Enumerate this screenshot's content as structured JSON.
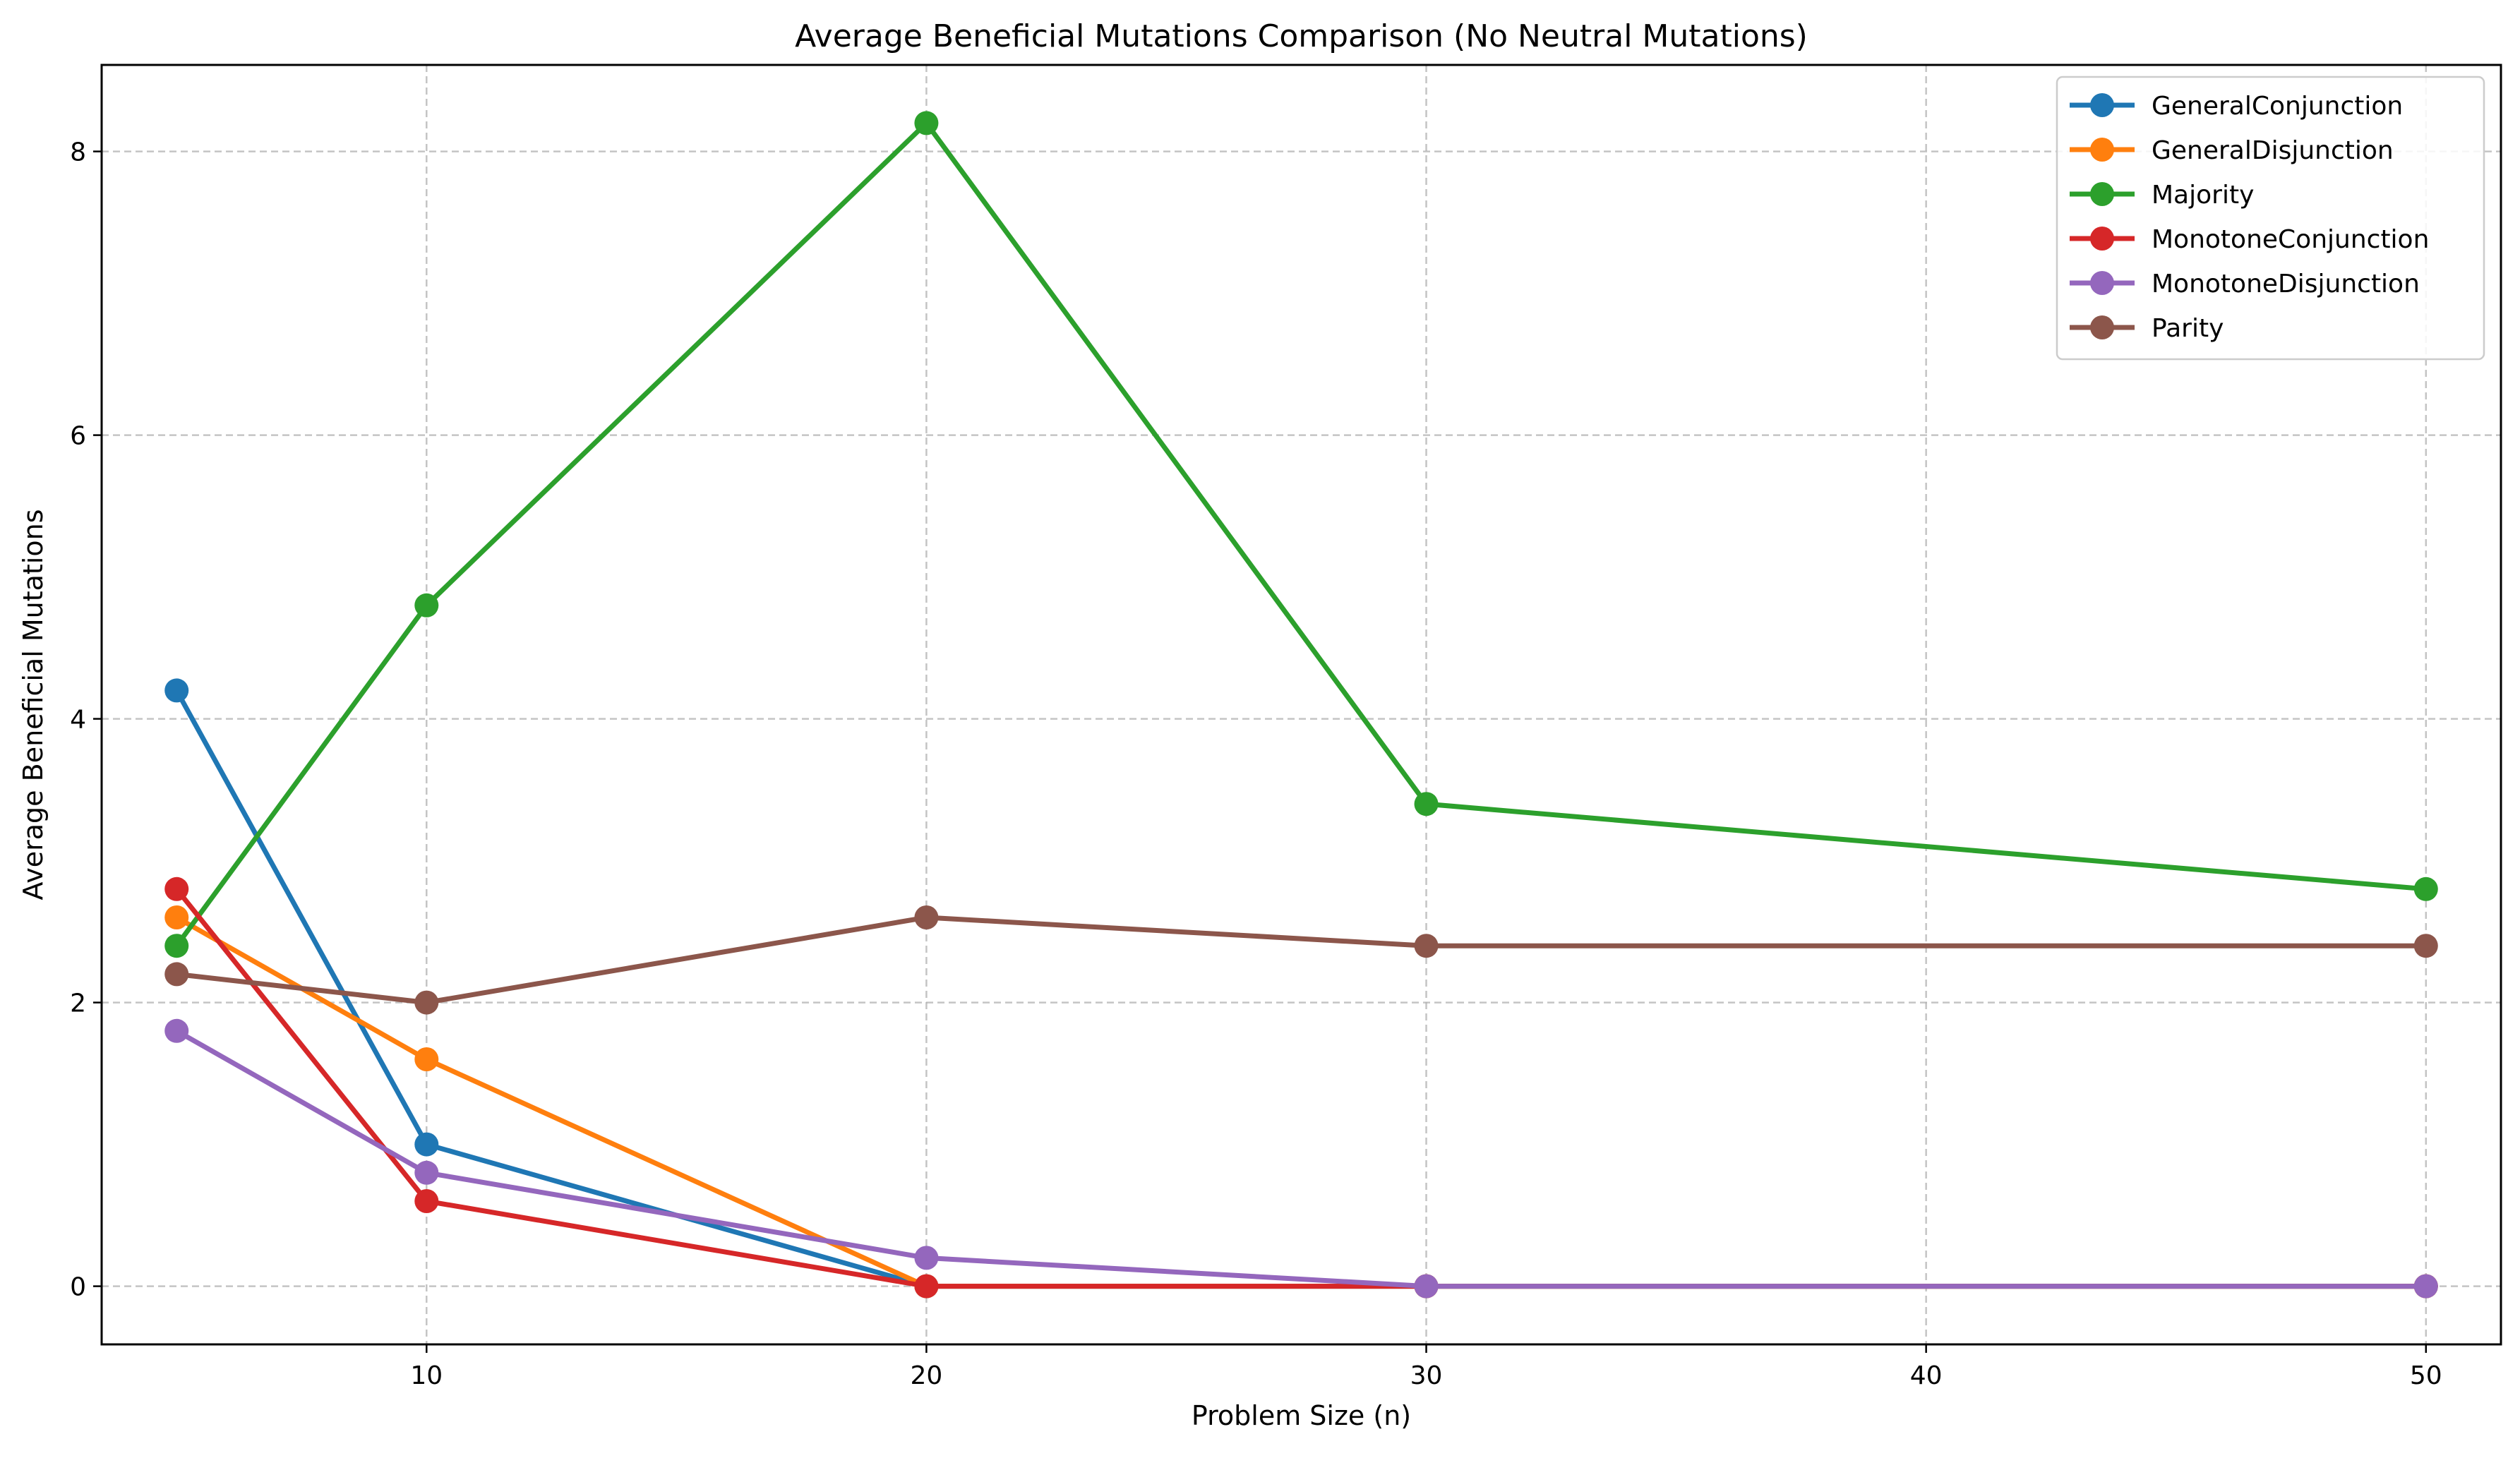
{
  "chart_data": {
    "type": "line",
    "title": "Average Beneficial Mutations Comparison (No Neutral Mutations)",
    "xlabel": "Problem Size (n)",
    "ylabel": "Average Beneficial Mutations",
    "xlim": [
      3.5,
      51.5
    ],
    "ylim": [
      -0.41,
      8.61
    ],
    "xticks": [
      10,
      20,
      30,
      40,
      50
    ],
    "yticks": [
      0,
      2,
      4,
      6,
      8
    ],
    "grid": true,
    "legend_position": "top-right",
    "series": [
      {
        "name": "GeneralConjunction",
        "color": "#1f77b4",
        "x": [
          5,
          10,
          20,
          30,
          50
        ],
        "y": [
          4.2,
          1.0,
          0.0,
          0.0,
          0.0
        ]
      },
      {
        "name": "GeneralDisjunction",
        "color": "#ff7f0e",
        "x": [
          5,
          10,
          20,
          30,
          50
        ],
        "y": [
          2.6,
          1.6,
          0.0,
          0.0,
          0.0
        ]
      },
      {
        "name": "Majority",
        "color": "#2ca02c",
        "x": [
          5,
          10,
          20,
          30,
          50
        ],
        "y": [
          2.4,
          4.8,
          8.2,
          3.4,
          2.8
        ]
      },
      {
        "name": "MonotoneConjunction",
        "color": "#d62728",
        "x": [
          5,
          10,
          20,
          30,
          50
        ],
        "y": [
          2.8,
          0.6,
          0.0,
          0.0,
          0.0
        ]
      },
      {
        "name": "MonotoneDisjunction",
        "color": "#9467bd",
        "x": [
          5,
          10,
          20,
          30,
          50
        ],
        "y": [
          1.8,
          0.8,
          0.2,
          0.0,
          0.0
        ]
      },
      {
        "name": "Parity",
        "color": "#8c564b",
        "x": [
          5,
          10,
          20,
          30,
          50
        ],
        "y": [
          2.2,
          2.0,
          2.6,
          2.4,
          2.4
        ]
      }
    ]
  }
}
